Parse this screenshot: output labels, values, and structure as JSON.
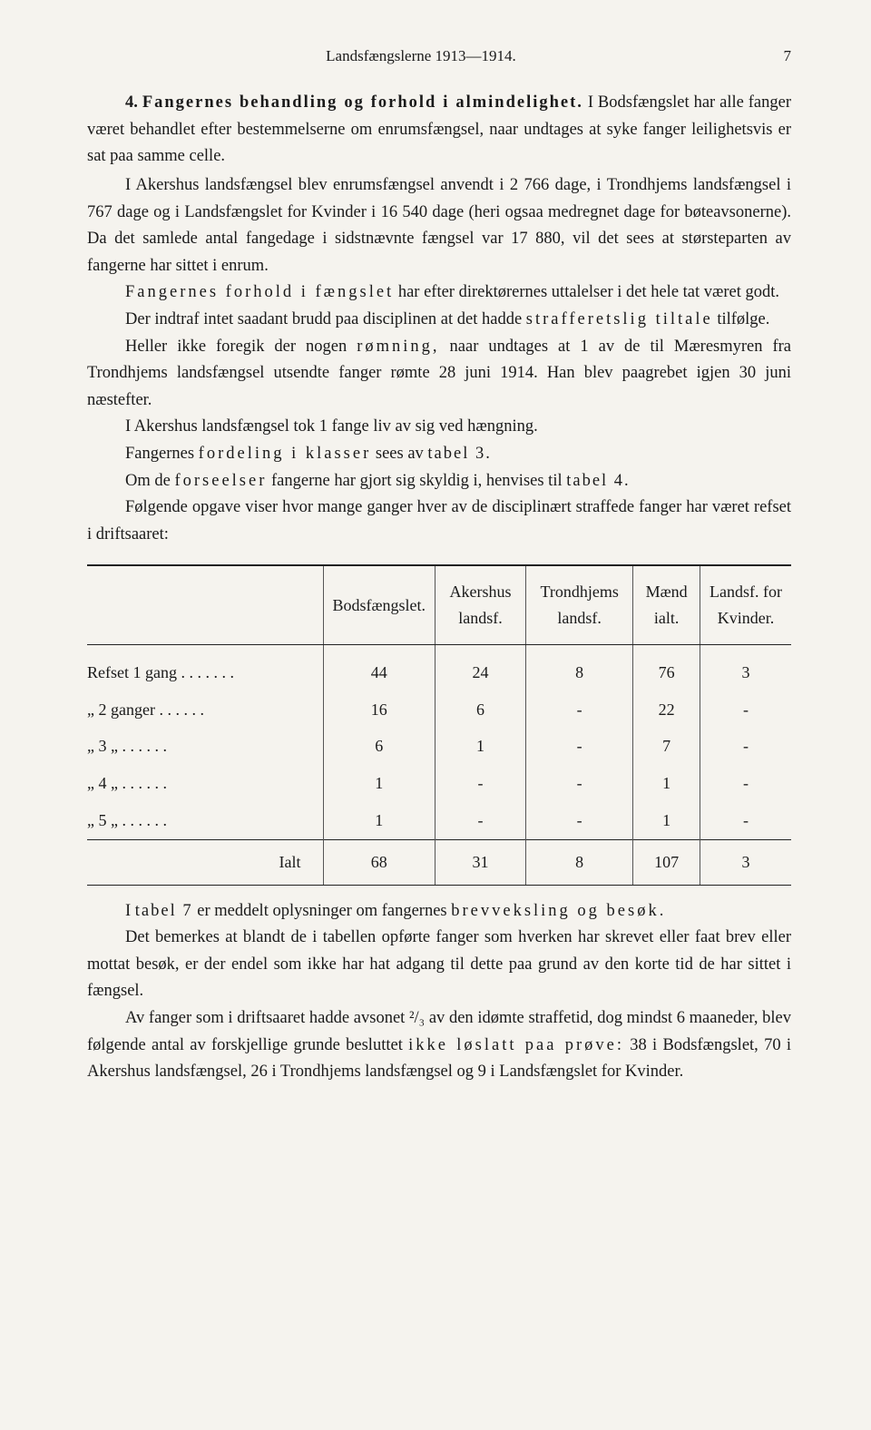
{
  "header": {
    "center": "Landsfængslerne 1913—1914.",
    "pageno": "7"
  },
  "title": {
    "num": "4.",
    "text": "Fangernes behandling og forhold i almindelighet."
  },
  "paras": [
    "I Bodsfængslet har alle fanger været behandlet efter bestemmelserne om enrumsfængsel, naar undtages at syke fanger leilighetsvis er sat paa samme celle.",
    "I Akershus landsfængsel blev enrumsfængsel anvendt i 2 766 dage, i Trondhjems landsfængsel i 767 dage og i Landsfængslet for Kvinder i 16 540 dage (heri ogsaa medregnet dage for bøteavsonerne). Da det samlede antal fangedage i sidstnævnte fængsel var 17 880, vil det sees at størsteparten av fangerne har sittet i enrum.",
    "har efter direktørernes uttalelser i det hele tat været godt.",
    "Der indtraf intet saadant brudd paa disciplinen at det hadde ",
    "tilfølge.",
    "naar undtages at 1 av de til Mæresmyren fra Trondhjems landsfængsel utsendte fanger rømte 28 juni 1914. Han blev paagrebet igjen 30 juni næstefter.",
    "I Akershus landsfængsel tok 1 fange liv av sig ved hængning.",
    "Om de ",
    " fangerne har gjort sig skyldig i, henvises til ",
    "Følgende opgave viser hvor mange ganger hver av de disciplinært straffede fanger har været refset i driftsaaret:"
  ],
  "spaced": {
    "fangernes_forhold": "Fangernes forhold i fængslet",
    "strafferetslig": "strafferetslig tiltale",
    "romning_pre": "Heller ikke foregik der nogen ",
    "romning": "rømning,",
    "fordeling_pre": "Fangernes ",
    "fordeling": "fordeling i klasser",
    "fordeling_post": " sees av ",
    "tabel3": "tabel 3.",
    "forseelser": "forseelser",
    "tabel4": "tabel 4.",
    "tabel7_pre": "I ",
    "tabel7": "tabel 7",
    "tabel7_post": " er meddelt oplysninger om fangernes ",
    "brevveksling": "brevveksling og besøk.",
    "ikke": "ikke løslatt paa prøve:"
  },
  "table": {
    "headers": [
      "Bodsfængslet.",
      "Akershus landsf.",
      "Trondhjems landsf.",
      "Mænd ialt.",
      "Landsf. for Kvinder."
    ],
    "rows": [
      {
        "label": "Refset 1 gang  .  .  .  .  .  .  .",
        "cells": [
          "44",
          "24",
          "8",
          "76",
          "3"
        ]
      },
      {
        "label": "   „    2 ganger   .  .  .  .  .  .",
        "cells": [
          "16",
          "6",
          "-",
          "22",
          "-"
        ]
      },
      {
        "label": "   „    3    „      .  .  .  .  .  .",
        "cells": [
          "6",
          "1",
          "-",
          "7",
          "-"
        ]
      },
      {
        "label": "   „    4    „      .  .  .  .  .  .",
        "cells": [
          "1",
          "-",
          "-",
          "1",
          "-"
        ]
      },
      {
        "label": "   „    5    „      .  .  .  .  .  .",
        "cells": [
          "1",
          "-",
          "-",
          "1",
          "-"
        ]
      }
    ],
    "sum": {
      "label": "Ialt",
      "cells": [
        "68",
        "31",
        "8",
        "107",
        "3"
      ]
    }
  },
  "after": [
    "Det bemerkes at blandt de i tabellen opførte fanger som hverken har skrevet eller faat brev eller mottat besøk, er der endel som ikke har hat adgang til dette paa grund av den korte tid de har sittet i fængsel.",
    "Av fanger som i driftsaaret hadde avsonet ²/₃ av den idømte straffetid, dog mindst 6 maaneder, blev følgende antal av forskjellige grunde besluttet ",
    " 38 i Bodsfængslet, 70 i Akershus landsfængsel, 26 i Trondhjems landsfængsel og 9 i Landsfængslet for Kvinder."
  ]
}
